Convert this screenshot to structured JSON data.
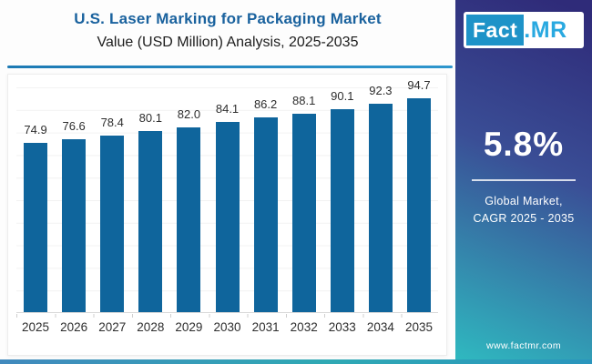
{
  "header": {
    "title": "U.S. Laser Marking for Packaging Market",
    "subtitle": "Value (USD Million) Analysis, 2025-2035"
  },
  "logo": {
    "part1": "Fact",
    "part2": ".MR"
  },
  "sidebar": {
    "cagr_value": "5.8%",
    "cagr_label_line1": "Global Market,",
    "cagr_label_line2": "CAGR 2025 - 2035",
    "website": "www.factmr.com"
  },
  "colors": {
    "title_blue": "#1a629e",
    "bar_blue": "#0f659c",
    "logo_box_blue": "#1e93c8",
    "logo_mr_blue": "#29a9e0",
    "sidebar_gradient_top": "#2f2b79",
    "sidebar_gradient_bottom": "#2fb9c0",
    "accent_line": "#2e96cd"
  },
  "chart_data": {
    "type": "bar",
    "title": "U.S. Laser Marking for Packaging Market Value (USD Million) Analysis, 2025-2035",
    "categories": [
      "2025",
      "2026",
      "2027",
      "2028",
      "2029",
      "2030",
      "2031",
      "2032",
      "2033",
      "2034",
      "2035"
    ],
    "values": [
      74.9,
      76.6,
      78.4,
      80.1,
      82.0,
      84.1,
      86.2,
      88.1,
      90.1,
      92.3,
      94.7
    ],
    "xlabel": "",
    "ylabel": "Value (USD Million)",
    "ylim": [
      0,
      100
    ],
    "grid": "horizontal",
    "legend": "none",
    "data_labels": true,
    "bar_color": "#0f659c"
  }
}
